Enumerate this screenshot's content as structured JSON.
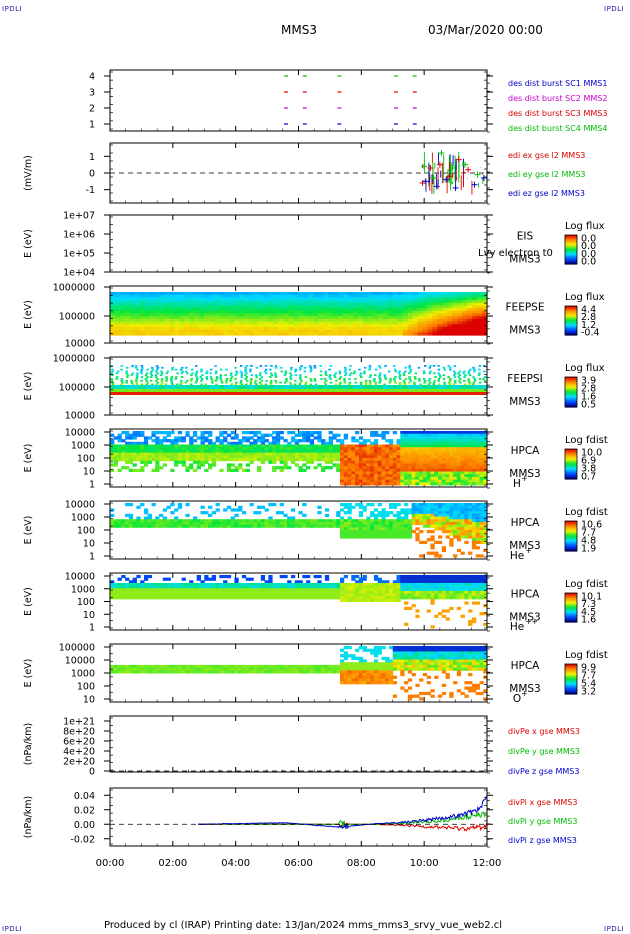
{
  "corner_tl": "IPDLI",
  "corner_tr": "IPDLI",
  "corner_bl": "IPDLI",
  "corner_br": "IPDLI",
  "header": {
    "title": "MMS3",
    "date": "03/Mar/2020 00:00"
  },
  "footer": {
    "text": "Produced by cl (IRAP)   Printing date: 13/Jan/2024   mms_mms3_srvy_vue_web2.cl"
  },
  "time_axis": {
    "ticks": [
      "00:00",
      "02:00",
      "04:00",
      "06:00",
      "08:00",
      "10:00",
      "12:00"
    ]
  },
  "chart_data": [
    {
      "panel": "des-dist-burst",
      "type": "scatter",
      "yticks": [
        "4",
        "3",
        "2",
        "1"
      ],
      "series": [
        {
          "name": "des dist burst SC1 MMS1",
          "color": "#0000cc",
          "y": 1,
          "x_hours": [
            5.6,
            6.2,
            7.3,
            9.1,
            9.7
          ]
        },
        {
          "name": "des dist burst SC2 MMS2",
          "color": "#cc00cc",
          "y": 2,
          "x_hours": [
            5.6,
            6.2,
            7.3,
            9.1,
            9.7
          ]
        },
        {
          "name": "des dist burst SC3 MMS3",
          "color": "#dd0000",
          "y": 3,
          "x_hours": [
            5.6,
            6.2,
            7.3,
            9.1,
            9.7
          ]
        },
        {
          "name": "des dist burst SC4 MMS4",
          "color": "#00bb00",
          "y": 4,
          "x_hours": [
            5.6,
            6.2,
            7.3,
            9.1,
            9.7
          ]
        }
      ]
    },
    {
      "panel": "edi",
      "type": "scatter",
      "ylabel": "(mV/m)",
      "yticks": [
        "1",
        "0",
        "-1"
      ],
      "ylim": [
        -1.8,
        1.8
      ],
      "series": [
        {
          "name": "edi ex gse l2 MMS3",
          "color": "#dd0000",
          "x_hours": [
            9.95,
            10.2,
            10.5,
            10.8,
            11.1,
            11.4
          ],
          "y": [
            -0.6,
            0.3,
            0.5,
            -0.2,
            0.8,
            0.2
          ]
        },
        {
          "name": "edi ey gse l2 MMS3",
          "color": "#00bb00",
          "x_hours": [
            10.0,
            10.3,
            10.55,
            10.9,
            11.3,
            11.7
          ],
          "y": [
            0.4,
            -0.3,
            1.2,
            0.3,
            0.5,
            -0.1
          ]
        },
        {
          "name": "edi ez gse l2 MMS3",
          "color": "#0000cc",
          "x_hours": [
            10.05,
            10.4,
            10.7,
            11.0,
            11.6,
            11.9
          ],
          "y": [
            -0.5,
            -0.8,
            -0.4,
            -0.9,
            -0.7,
            -0.3
          ]
        }
      ]
    },
    {
      "panel": "eis",
      "type": "heatmap",
      "ylabel": "E (eV)",
      "yticks": [
        "1e+07",
        "1e+06",
        "1e+05",
        "1e+04"
      ],
      "labels": [
        "EIS",
        "MMS3"
      ],
      "overlay_text": "Lvy electron t0",
      "colorbar": {
        "title": "Log flux",
        "ticks": [
          "0.0",
          "0.0",
          "0.0",
          "0.0"
        ]
      }
    },
    {
      "panel": "feepse",
      "type": "heatmap",
      "ylabel": "E (eV)",
      "yticks": [
        "1000000",
        "100000",
        "10000"
      ],
      "labels": [
        "FEEPSE",
        "MMS3"
      ],
      "colorbar": {
        "title": "Log flux",
        "ticks": [
          "4.4",
          "2.8",
          "1.2",
          "-0.4"
        ]
      }
    },
    {
      "panel": "feepsi",
      "type": "heatmap",
      "ylabel": "E (eV)",
      "yticks": [
        "1000000",
        "100000",
        "10000"
      ],
      "labels": [
        "FEEPSI",
        "MMS3"
      ],
      "colorbar": {
        "title": "Log flux",
        "ticks": [
          "3.9",
          "2.8",
          "1.6",
          "0.5"
        ]
      }
    },
    {
      "panel": "hpca-h",
      "type": "heatmap",
      "ylabel": "E (eV)",
      "yticks": [
        "10000",
        "1000",
        "100",
        "10",
        "1"
      ],
      "labels": [
        "HPCA",
        "MMS3"
      ],
      "species": "H",
      "species_sup": "+",
      "colorbar": {
        "title": "Log fdist",
        "ticks": [
          "10.0",
          "6.9",
          "3.8",
          "0.7"
        ]
      }
    },
    {
      "panel": "hpca-he",
      "type": "heatmap",
      "ylabel": "E (eV)",
      "yticks": [
        "10000",
        "1000",
        "100",
        "10",
        "1"
      ],
      "labels": [
        "HPCA",
        "MMS3"
      ],
      "species": "He",
      "species_sup": "+",
      "colorbar": {
        "title": "Log fdist",
        "ticks": [
          "10.6",
          "7.7",
          "4.8",
          "1.9"
        ]
      }
    },
    {
      "panel": "hpca-hepp",
      "type": "heatmap",
      "ylabel": "E (eV)",
      "yticks": [
        "10000",
        "1000",
        "100",
        "10",
        "1"
      ],
      "labels": [
        "HPCA",
        "MMS3"
      ],
      "species": "He",
      "species_sup": "++",
      "colorbar": {
        "title": "Log fdist",
        "ticks": [
          "10.1",
          "7.3",
          "4.5",
          "1.6"
        ]
      }
    },
    {
      "panel": "hpca-o",
      "type": "heatmap",
      "ylabel": "E (eV)",
      "yticks": [
        "100000",
        "10000",
        "1000",
        "100",
        "10"
      ],
      "labels": [
        "HPCA",
        "MMS3"
      ],
      "species": "O",
      "species_sup": "+",
      "colorbar": {
        "title": "Log fdist",
        "ticks": [
          "9.9",
          "7.7",
          "5.4",
          "3.2"
        ]
      }
    },
    {
      "panel": "divpe",
      "type": "line",
      "ylabel": "(nPa/km)",
      "yticks": [
        "1e+21",
        "8e+20",
        "6e+20",
        "4e+20",
        "2e+20",
        "0"
      ],
      "series": [
        {
          "name": "divPe x gse MMS3",
          "color": "#dd0000"
        },
        {
          "name": "divPe y gse MMS3",
          "color": "#00bb00"
        },
        {
          "name": "divPe z gse MMS3",
          "color": "#0000cc"
        }
      ]
    },
    {
      "panel": "divpi",
      "type": "line",
      "ylabel": "(nPa/km)",
      "yticks": [
        "0.04",
        "0.02",
        "0.00",
        "-0.02"
      ],
      "ylim": [
        -0.03,
        0.05
      ],
      "series": [
        {
          "name": "divPi x gse MMS3",
          "color": "#dd0000",
          "x_hours": [
            2.8,
            6.0,
            7.4,
            8.5,
            9.5,
            10.5,
            11.2,
            11.8,
            12.0
          ],
          "y": [
            0.0,
            0.0,
            0.0,
            0.0,
            -0.002,
            -0.004,
            -0.006,
            -0.004,
            -0.002
          ]
        },
        {
          "name": "divPi y gse MMS3",
          "color": "#00bb00",
          "x_hours": [
            2.8,
            6.0,
            7.4,
            8.5,
            9.5,
            10.5,
            11.2,
            11.8,
            12.0
          ],
          "y": [
            0.0,
            0.0,
            0.0,
            0.0,
            0.002,
            0.005,
            0.009,
            0.013,
            0.015
          ]
        },
        {
          "name": "divPi z gse MMS3",
          "color": "#0000cc",
          "x_hours": [
            2.8,
            5.6,
            7.3,
            8.5,
            9.5,
            10.5,
            11.2,
            11.8,
            12.0
          ],
          "y": [
            0.0,
            0.002,
            -0.004,
            0.001,
            0.003,
            0.008,
            0.013,
            0.022,
            0.04
          ]
        }
      ]
    }
  ]
}
